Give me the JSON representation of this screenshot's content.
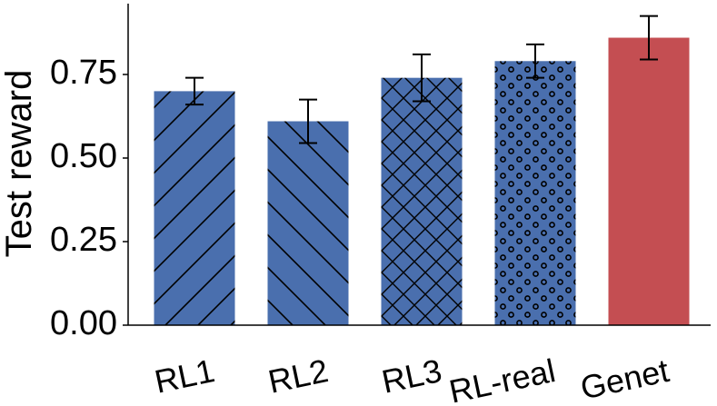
{
  "chart_data": {
    "type": "bar",
    "title": "",
    "xlabel": "",
    "ylabel": "Test reward",
    "categories": [
      "RL1",
      "RL2",
      "RL3",
      "RL-real",
      "Genet"
    ],
    "values": [
      0.7,
      0.61,
      0.74,
      0.79,
      0.86
    ],
    "errors": [
      0.04,
      0.065,
      0.07,
      0.05,
      0.065
    ],
    "ylim": [
      0,
      1.0
    ],
    "yticks": [
      0.0,
      0.25,
      0.5,
      0.75
    ],
    "ytick_labels": [
      "0.00",
      "0.25",
      "0.50",
      "0.75"
    ],
    "colors": [
      "#4a6fae",
      "#4a6fae",
      "#4a6fae",
      "#4a6fae",
      "#c44e52"
    ],
    "hatches": [
      "forward-diagonal",
      "back-diagonal",
      "crosshatch",
      "circles",
      "none"
    ],
    "grid": false,
    "legend": "none"
  }
}
